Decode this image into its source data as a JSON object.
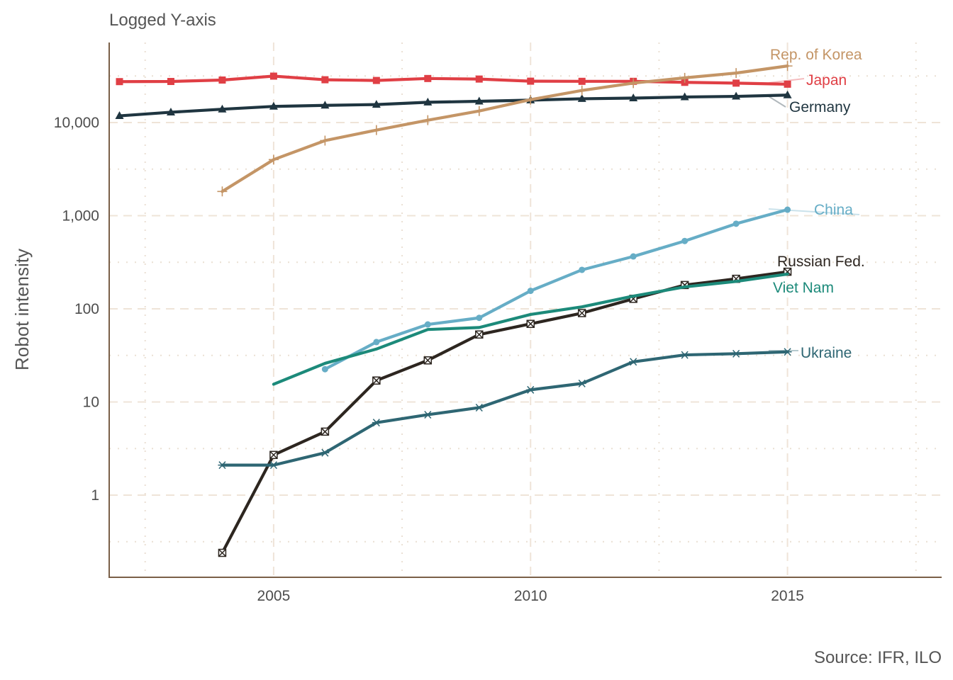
{
  "chart_data": {
    "type": "line",
    "title": "Logged Y-axis",
    "xlabel": "",
    "ylabel": "Robot intensity",
    "caption": "Source: IFR, ILO",
    "y_scale": "log10",
    "xlim": [
      2001.8,
      2018.0
    ],
    "ylim": [
      0.095,
      70000
    ],
    "x_ticks": [
      2005,
      2010,
      2015
    ],
    "x_tick_labels": [
      "2005",
      "2010",
      "2015"
    ],
    "y_ticks": [
      1,
      10,
      100,
      1000,
      10000
    ],
    "y_tick_labels": [
      "1",
      "10",
      "100",
      "1,000",
      "10,000"
    ],
    "grid": true,
    "legend": "direct labels at right end of lines",
    "series": [
      {
        "name": "Japan",
        "color": "#e03f45",
        "marker": "square",
        "x": [
          2002,
          2003,
          2004,
          2005,
          2006,
          2007,
          2008,
          2009,
          2010,
          2011,
          2012,
          2013,
          2014,
          2015
        ],
        "values": [
          27500,
          27600,
          28600,
          31500,
          28800,
          28300,
          29700,
          29300,
          27800,
          27700,
          27700,
          27000,
          26500,
          25800
        ]
      },
      {
        "name": "Germany",
        "color": "#1f3540",
        "marker": "triangle",
        "x": [
          2002,
          2003,
          2004,
          2005,
          2006,
          2007,
          2008,
          2009,
          2010,
          2011,
          2012,
          2013,
          2014,
          2015
        ],
        "values": [
          11800,
          12900,
          13900,
          14900,
          15300,
          15600,
          16500,
          16900,
          17400,
          18000,
          18300,
          18800,
          19100,
          19700
        ]
      },
      {
        "name": "Rep. of Korea",
        "color": "#c49566",
        "marker": "plus",
        "x": [
          2004,
          2005,
          2006,
          2007,
          2008,
          2009,
          2010,
          2011,
          2012,
          2013,
          2014,
          2015
        ],
        "values": [
          1820,
          4000,
          6400,
          8300,
          10600,
          13300,
          17600,
          22100,
          26500,
          30200,
          34000,
          40500
        ]
      },
      {
        "name": "China",
        "color": "#66adc6",
        "marker": "circle",
        "x": [
          2006,
          2007,
          2008,
          2009,
          2010,
          2011,
          2012,
          2013,
          2014,
          2015
        ],
        "values": [
          22.5,
          44,
          68,
          80,
          156,
          262,
          365,
          535,
          820,
          1160
        ]
      },
      {
        "name": "Russian Fed.",
        "color": "#2d2620",
        "marker": "square-x",
        "x": [
          2004,
          2005,
          2006,
          2007,
          2008,
          2009,
          2010,
          2011,
          2012,
          2013,
          2014,
          2015
        ],
        "values": [
          0.24,
          2.7,
          4.8,
          17,
          28,
          53,
          69,
          90,
          128,
          180,
          210,
          250
        ]
      },
      {
        "name": "Viet Nam",
        "color": "#1c8a7a",
        "marker": "none",
        "x": [
          2005,
          2006,
          2007,
          2008,
          2009,
          2010,
          2011,
          2012,
          2013,
          2014,
          2015
        ],
        "values": [
          15.5,
          26,
          37,
          60,
          63,
          87,
          105,
          137,
          172,
          197,
          236
        ]
      },
      {
        "name": "Ukraine",
        "color": "#2e6673",
        "marker": "asterisk",
        "x": [
          2004,
          2005,
          2006,
          2007,
          2008,
          2009,
          2010,
          2011,
          2012,
          2013,
          2014,
          2015
        ],
        "values": [
          2.1,
          2.1,
          2.85,
          6.0,
          7.3,
          8.7,
          13.5,
          15.8,
          27,
          32,
          33,
          34.5
        ]
      }
    ]
  }
}
